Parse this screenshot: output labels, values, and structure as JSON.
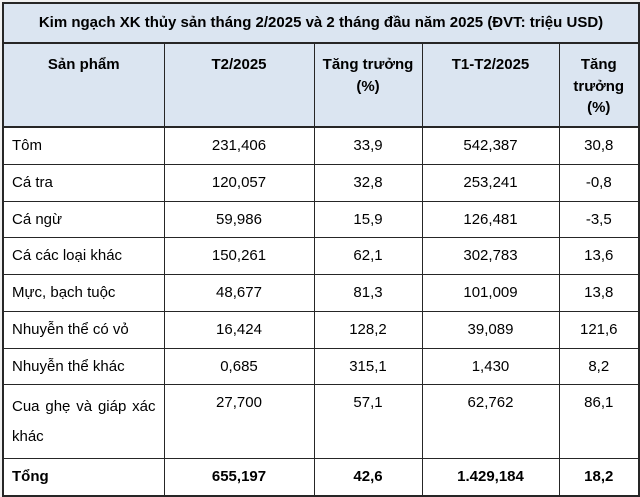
{
  "colors": {
    "header_bg": "#dbe5f1",
    "cell_bg": "#ffffff",
    "border": "#262626",
    "text": "#000000",
    "page_bg": "#f0f0f0"
  },
  "chart_data": {
    "type": "table",
    "title": "Kim ngạch XK thủy sản tháng 2/2025 và 2 tháng đầu năm 2025 (ĐVT: triệu USD)",
    "columns": [
      "Sản phẩm",
      "T2/2025",
      "Tăng trưởng (%)",
      "T1-T2/2025",
      "Tăng trưởng (%)"
    ],
    "rows": [
      [
        "Tôm",
        "231,406",
        "33,9",
        "542,387",
        "30,8"
      ],
      [
        "Cá tra",
        "120,057",
        "32,8",
        "253,241",
        "-0,8"
      ],
      [
        "Cá ngừ",
        "59,986",
        "15,9",
        "126,481",
        "-3,5"
      ],
      [
        "Cá các loại khác",
        "150,261",
        "62,1",
        "302,783",
        "13,6"
      ],
      [
        "Mực, bạch tuộc",
        "48,677",
        "81,3",
        "101,009",
        "13,8"
      ],
      [
        "Nhuyễn thể có vỏ",
        "16,424",
        "128,2",
        "39,089",
        "121,6"
      ],
      [
        "Nhuyễn thể khác",
        "0,685",
        "315,1",
        "1,430",
        "8,2"
      ],
      [
        "Cua ghẹ và giáp xác khác",
        "27,700",
        "57,1",
        "62,762",
        "86,1"
      ]
    ],
    "total_row": [
      "Tổng",
      "655,197",
      "42,6",
      "1.429,184",
      "18,2"
    ]
  }
}
